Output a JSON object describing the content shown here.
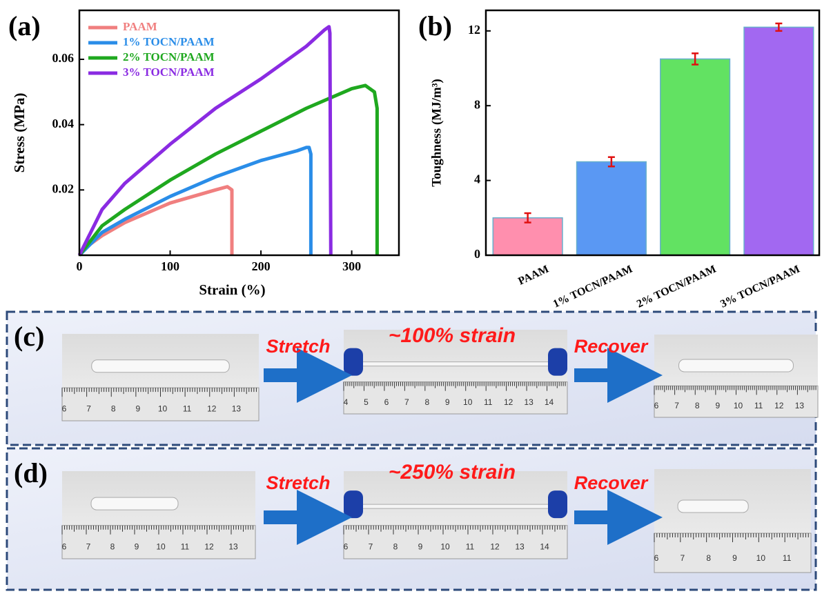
{
  "chart_data": [
    {
      "type": "line",
      "panel_label": "(a)",
      "x_label": "Strain  (%)",
      "y_label": "Stress  (MPa)",
      "xlim": [
        0,
        352
      ],
      "ylim": [
        0,
        0.075
      ],
      "xticks": [
        0,
        100,
        200,
        300
      ],
      "yticks": [
        0.02,
        0.04,
        0.06
      ],
      "series": [
        {
          "name": "PAAM",
          "color": "#f07f7f",
          "x": [
            0,
            10,
            25,
            50,
            75,
            100,
            125,
            150,
            163,
            168,
            168
          ],
          "values": [
            0,
            0.003,
            0.006,
            0.01,
            0.013,
            0.016,
            0.018,
            0.02,
            0.021,
            0.02,
            0
          ]
        },
        {
          "name": "1% TOCN/PAAM",
          "color": "#2a8de8",
          "x": [
            0,
            25,
            50,
            100,
            150,
            200,
            240,
            250,
            253,
            255,
            255
          ],
          "values": [
            0,
            0.007,
            0.011,
            0.018,
            0.024,
            0.029,
            0.032,
            0.033,
            0.033,
            0.031,
            0
          ]
        },
        {
          "name": "2% TOCN/PAAM",
          "color": "#1fa81f",
          "x": [
            0,
            25,
            50,
            100,
            150,
            200,
            250,
            300,
            315,
            325,
            328,
            328
          ],
          "values": [
            0,
            0.009,
            0.014,
            0.023,
            0.031,
            0.038,
            0.045,
            0.051,
            0.052,
            0.05,
            0.045,
            0
          ]
        },
        {
          "name": "3% TOCN/PAAM",
          "color": "#8a2be2",
          "x": [
            0,
            25,
            50,
            100,
            150,
            200,
            250,
            270,
            275,
            276,
            277
          ],
          "values": [
            0,
            0.014,
            0.022,
            0.034,
            0.045,
            0.054,
            0.064,
            0.069,
            0.07,
            0.068,
            0
          ]
        }
      ]
    },
    {
      "type": "bar",
      "panel_label": "(b)",
      "y_label": "Toughness  (MJ/m³)",
      "ylim": [
        0,
        13.1
      ],
      "yticks": [
        0,
        4,
        8,
        12
      ],
      "categories": [
        "PAAM",
        "1% TOCN/PAAM",
        "2% TOCN/PAAM",
        "3% TOCN/PAAM"
      ],
      "values": [
        2.0,
        5.0,
        10.5,
        12.2
      ],
      "errors": [
        0.25,
        0.25,
        0.3,
        0.2
      ],
      "colors": [
        "#ff86a8",
        "#4d90f2",
        "#55e055",
        "#9b5cf0"
      ],
      "error_color": "#e01010"
    }
  ],
  "photo_rows": [
    {
      "label": "(c)",
      "stretch": "Stretch",
      "strain": "~100% strain",
      "recover": "Recover",
      "rulers": [
        [
          6,
          7,
          8,
          9,
          10,
          11,
          12,
          13
        ],
        [
          4,
          5,
          6,
          7,
          8,
          9,
          10,
          11,
          12,
          13,
          14
        ],
        [
          6,
          7,
          8,
          9,
          10,
          11,
          12,
          13
        ]
      ]
    },
    {
      "label": "(d)",
      "stretch": "Stretch",
      "strain": "~250% strain",
      "recover": "Recover",
      "rulers": [
        [
          6,
          7,
          8,
          9,
          10,
          11,
          12,
          13
        ],
        [
          6,
          7,
          8,
          9,
          10,
          11,
          12,
          13,
          14
        ],
        [
          6,
          7,
          8,
          9,
          10,
          11
        ]
      ]
    }
  ]
}
